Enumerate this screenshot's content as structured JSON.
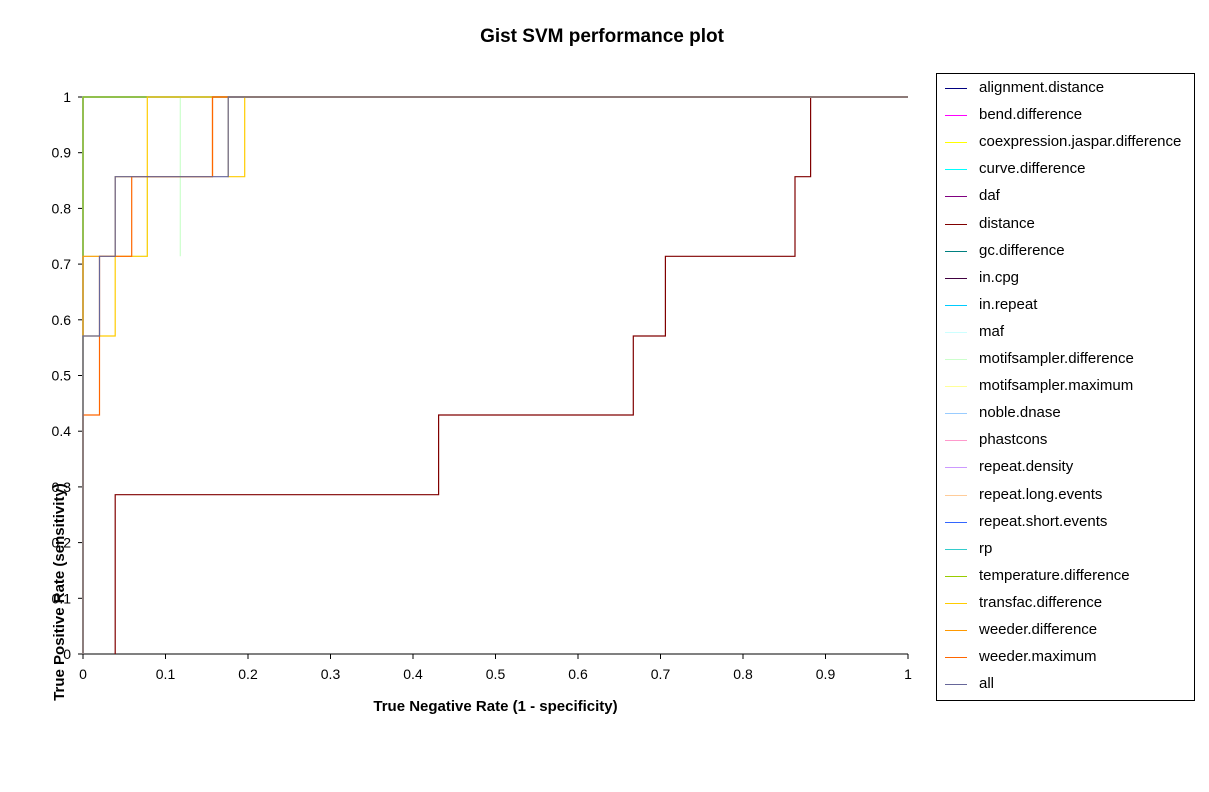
{
  "chart_data": {
    "type": "line",
    "title": "Gist SVM performance plot",
    "xlabel": "True Negative Rate (1 - specificity)",
    "ylabel": "True Positive Rate (sensitivity)",
    "xlim": [
      0,
      1
    ],
    "ylim": [
      0,
      1
    ],
    "xticks": [
      "0",
      "0.1",
      "0.2",
      "0.3",
      "0.4",
      "0.5",
      "0.6",
      "0.7",
      "0.8",
      "0.9",
      "1"
    ],
    "yticks": [
      "0",
      "0.1",
      "0.2",
      "0.3",
      "0.4",
      "0.5",
      "0.6",
      "0.7",
      "0.8",
      "0.9",
      "1"
    ],
    "grid": false,
    "legend_position": "right",
    "series": [
      {
        "name": "alignment.distance",
        "color": "#000080",
        "points": [
          [
            0,
            0
          ],
          [
            0,
            1
          ],
          [
            1,
            1
          ]
        ]
      },
      {
        "name": "bend.difference",
        "color": "#FF00FF",
        "points": [
          [
            0,
            0
          ],
          [
            0,
            1
          ],
          [
            1,
            1
          ]
        ]
      },
      {
        "name": "coexpression.jaspar.difference",
        "color": "#FFFF00",
        "points": [
          [
            0,
            0
          ],
          [
            0,
            1
          ],
          [
            1,
            1
          ]
        ]
      },
      {
        "name": "curve.difference",
        "color": "#00FFFF",
        "points": [
          [
            0,
            0
          ],
          [
            0,
            1
          ],
          [
            1,
            1
          ]
        ]
      },
      {
        "name": "daf",
        "color": "#800080",
        "points": [
          [
            0,
            0
          ],
          [
            0,
            1
          ],
          [
            1,
            1
          ]
        ]
      },
      {
        "name": "distance",
        "color": "#800000",
        "points": [
          [
            0.039,
            0
          ],
          [
            0.039,
            0.286
          ],
          [
            0.431,
            0.286
          ],
          [
            0.431,
            0.429
          ],
          [
            0.667,
            0.429
          ],
          [
            0.667,
            0.571
          ],
          [
            0.706,
            0.571
          ],
          [
            0.706,
            0.714
          ],
          [
            0.863,
            0.714
          ],
          [
            0.863,
            0.857
          ],
          [
            0.882,
            0.857
          ],
          [
            0.882,
            1
          ],
          [
            1,
            1
          ]
        ]
      },
      {
        "name": "gc.difference",
        "color": "#008080",
        "points": [
          [
            0,
            0
          ],
          [
            0,
            1
          ],
          [
            1,
            1
          ]
        ]
      },
      {
        "name": "in.cpg",
        "color": "#400040",
        "points": [
          [
            0,
            0
          ],
          [
            0,
            1
          ],
          [
            1,
            1
          ]
        ]
      },
      {
        "name": "in.repeat",
        "color": "#00CCFF",
        "points": [
          [
            0,
            0
          ],
          [
            0,
            1
          ],
          [
            1,
            1
          ]
        ]
      },
      {
        "name": "maf",
        "color": "#CCFFFF",
        "points": [
          [
            0,
            0
          ],
          [
            0,
            1
          ],
          [
            1,
            1
          ]
        ]
      },
      {
        "name": "motifsampler.difference",
        "color": "#CCFFCC",
        "points": [
          [
            0,
            0
          ],
          [
            0,
            0.714
          ],
          [
            0.078,
            0.714
          ],
          [
            0.078,
            0.857
          ],
          [
            0.118,
            0.857
          ],
          [
            0.118,
            0.714
          ],
          [
            0.118,
            1
          ],
          [
            1,
            1
          ]
        ]
      },
      {
        "name": "motifsampler.maximum",
        "color": "#FFFF99",
        "points": [
          [
            0,
            0
          ],
          [
            0,
            1
          ],
          [
            1,
            1
          ]
        ]
      },
      {
        "name": "noble.dnase",
        "color": "#99CCFF",
        "points": [
          [
            0,
            0
          ],
          [
            0,
            1
          ],
          [
            1,
            1
          ]
        ]
      },
      {
        "name": "phastcons",
        "color": "#FF99CC",
        "points": [
          [
            0,
            0
          ],
          [
            0,
            1
          ],
          [
            1,
            1
          ]
        ]
      },
      {
        "name": "repeat.density",
        "color": "#CC99FF",
        "points": [
          [
            0,
            0
          ],
          [
            0,
            1
          ],
          [
            1,
            1
          ]
        ]
      },
      {
        "name": "repeat.long.events",
        "color": "#FFCC99",
        "points": [
          [
            0,
            0
          ],
          [
            0,
            1
          ],
          [
            1,
            1
          ]
        ]
      },
      {
        "name": "repeat.short.events",
        "color": "#3366FF",
        "points": [
          [
            0,
            0
          ],
          [
            0,
            1
          ],
          [
            1,
            1
          ]
        ]
      },
      {
        "name": "rp",
        "color": "#33CCCC",
        "points": [
          [
            0,
            0
          ],
          [
            0,
            1
          ],
          [
            1,
            1
          ]
        ]
      },
      {
        "name": "temperature.difference",
        "color": "#99CC00",
        "points": [
          [
            0,
            0
          ],
          [
            0,
            1
          ],
          [
            1,
            1
          ]
        ]
      },
      {
        "name": "transfac.difference",
        "color": "#FFCC00",
        "points": [
          [
            0,
            0
          ],
          [
            0,
            0.571
          ],
          [
            0.039,
            0.571
          ],
          [
            0.039,
            0.714
          ],
          [
            0.078,
            0.714
          ],
          [
            0.078,
            1
          ],
          [
            0.176,
            1
          ],
          [
            0.176,
            0.857
          ],
          [
            0.196,
            0.857
          ],
          [
            0.196,
            1
          ],
          [
            1,
            1
          ]
        ]
      },
      {
        "name": "weeder.difference",
        "color": "#FF9900",
        "points": [
          [
            0,
            0
          ],
          [
            0,
            0.714
          ],
          [
            0.039,
            0.714
          ],
          [
            0.039,
            0.857
          ],
          [
            0.157,
            0.857
          ],
          [
            0.157,
            1
          ],
          [
            1,
            1
          ]
        ]
      },
      {
        "name": "weeder.maximum",
        "color": "#FF6600",
        "points": [
          [
            0,
            0
          ],
          [
            0,
            0.429
          ],
          [
            0.02,
            0.429
          ],
          [
            0.02,
            0.714
          ],
          [
            0.059,
            0.714
          ],
          [
            0.059,
            0.857
          ],
          [
            0.157,
            0.857
          ],
          [
            0.157,
            1
          ],
          [
            1,
            1
          ]
        ]
      },
      {
        "name": "all",
        "color": "#666699",
        "points": [
          [
            0,
            0
          ],
          [
            0,
            0.571
          ],
          [
            0.02,
            0.571
          ],
          [
            0.02,
            0.714
          ],
          [
            0.039,
            0.714
          ],
          [
            0.039,
            0.857
          ],
          [
            0.176,
            0.857
          ],
          [
            0.176,
            1
          ],
          [
            1,
            1
          ]
        ]
      }
    ]
  }
}
